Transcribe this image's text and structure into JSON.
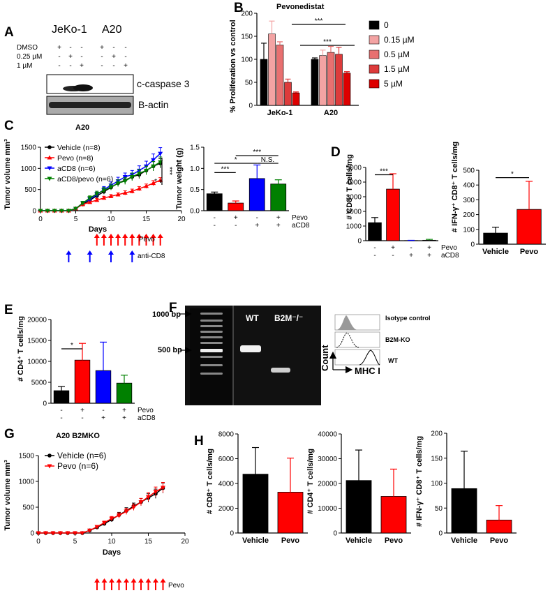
{
  "panel_labels": [
    "A",
    "B",
    "C",
    "D",
    "E",
    "F",
    "G",
    "H"
  ],
  "panel_a": {
    "cell_lines": [
      "JeKo-1",
      "A20"
    ],
    "treatments": [
      "DMSO",
      "0.25 µM",
      "1 µM"
    ],
    "marks": [
      [
        "+",
        "-",
        "-",
        "+",
        "-",
        "-"
      ],
      [
        "-",
        "+",
        "-",
        "-",
        "+",
        "-"
      ],
      [
        "-",
        "-",
        "+",
        "-",
        "-",
        "+"
      ]
    ],
    "blots": [
      "c-caspase 3",
      "B-actin"
    ]
  },
  "chart_data": [
    {
      "id": "B",
      "type": "bar",
      "title": "Pevonedistat",
      "categories": [
        "JeKo-1",
        "A20"
      ],
      "ylabel": "% Proliferation vs control",
      "ylim": [
        0,
        200
      ],
      "yticks": [
        0,
        50,
        100,
        150,
        200
      ],
      "series": [
        {
          "name": "0",
          "color": "#000000",
          "values": [
            100,
            100
          ],
          "err": [
            35,
            3
          ]
        },
        {
          "name": "0.15 µM",
          "color": "#f3a3a3",
          "values": [
            155,
            108
          ],
          "err": [
            28,
            12
          ]
        },
        {
          "name": "0.5 µM",
          "color": "#e87070",
          "values": [
            131,
            115
          ],
          "err": [
            7,
            13
          ]
        },
        {
          "name": "1.5 µM",
          "color": "#dd3b3b",
          "values": [
            50,
            111
          ],
          "err": [
            7,
            15
          ]
        },
        {
          "name": "5 µM",
          "color": "#dd0000",
          "values": [
            27,
            70
          ],
          "err": [
            2,
            3
          ]
        }
      ],
      "annotations": [
        "***",
        "***"
      ]
    },
    {
      "id": "C-left",
      "type": "line",
      "title": "A20",
      "xlabel": "Days",
      "ylabel": "Tumor volume mm³",
      "xlim": [
        0,
        20
      ],
      "ylim": [
        0,
        1500
      ],
      "xticks": [
        0,
        5,
        10,
        15,
        20
      ],
      "yticks": [
        0,
        500,
        1000,
        1500
      ],
      "x": [
        0,
        1,
        2,
        3,
        4,
        5,
        6,
        7,
        8,
        9,
        10,
        11,
        12,
        13,
        14,
        15,
        16,
        17
      ],
      "series": [
        {
          "name": "Vehicle (n=8)",
          "color": "#000000",
          "marker": "circle",
          "values": [
            0,
            0,
            0,
            0,
            0,
            50,
            150,
            250,
            350,
            450,
            550,
            650,
            720,
            800,
            850,
            950,
            1050,
            1120
          ],
          "err": [
            0,
            0,
            0,
            0,
            0,
            15,
            30,
            40,
            50,
            60,
            60,
            70,
            80,
            80,
            90,
            100,
            110,
            110
          ]
        },
        {
          "name": "Pevo (n=8)",
          "color": "#ff0000",
          "marker": "triangle-up",
          "values": [
            0,
            0,
            0,
            0,
            0,
            50,
            150,
            200,
            250,
            300,
            340,
            380,
            420,
            460,
            520,
            580,
            650,
            720
          ],
          "err": [
            0,
            0,
            0,
            0,
            0,
            15,
            30,
            30,
            40,
            40,
            40,
            40,
            50,
            50,
            50,
            50,
            60,
            60
          ]
        },
        {
          "name": "aCD8 (n=6)",
          "color": "#0000ff",
          "marker": "triangle-down",
          "values": [
            0,
            0,
            0,
            0,
            0,
            50,
            180,
            270,
            380,
            500,
            600,
            700,
            800,
            850,
            950,
            1050,
            1200,
            1350
          ],
          "err": [
            0,
            0,
            0,
            0,
            0,
            15,
            40,
            50,
            60,
            70,
            80,
            90,
            90,
            100,
            110,
            120,
            140,
            140
          ]
        },
        {
          "name": "aCD8/pevo (n=6)",
          "color": "#008000",
          "marker": "triangle-down",
          "values": [
            0,
            0,
            0,
            0,
            0,
            50,
            180,
            300,
            400,
            480,
            560,
            650,
            700,
            800,
            880,
            950,
            1050,
            1150
          ],
          "err": [
            0,
            0,
            0,
            0,
            0,
            15,
            40,
            50,
            60,
            70,
            70,
            80,
            80,
            90,
            100,
            100,
            110,
            120
          ]
        }
      ],
      "annotations": [
        "*",
        "***"
      ],
      "dosing": [
        {
          "label": "Pevo",
          "color": "#ff0000",
          "days": [
            8,
            9,
            10,
            11,
            12,
            13,
            14,
            15,
            16,
            17
          ]
        },
        {
          "label": "anti-CD8",
          "color": "#0000ff",
          "days": [
            4,
            7,
            10,
            13
          ]
        }
      ]
    },
    {
      "id": "C-right",
      "type": "bar",
      "ylabel": "Tumor weight (g)",
      "ylim": [
        0,
        1.5
      ],
      "yticks": [
        0.0,
        0.5,
        1.0,
        1.5
      ],
      "values": [
        0.4,
        0.18,
        0.76,
        0.63
      ],
      "err": [
        0.04,
        0.05,
        0.32,
        0.1
      ],
      "colors": [
        "#000000",
        "#ff0000",
        "#0000ff",
        "#008000"
      ],
      "rows": [
        {
          "label": "Pevo",
          "marks": [
            "-",
            "+",
            "-",
            "+"
          ]
        },
        {
          "label": "aCD8",
          "marks": [
            "-",
            "-",
            "+",
            "+"
          ]
        }
      ],
      "annotations": [
        "***",
        "*",
        "***",
        "N.S."
      ]
    },
    {
      "id": "D-left",
      "type": "bar",
      "ylabel": "# CD8⁺ T cells/mg",
      "ylim": [
        0,
        5000
      ],
      "yticks": [
        0,
        1000,
        2000,
        3000,
        4000,
        5000
      ],
      "values": [
        1230,
        3520,
        10,
        30
      ],
      "err": [
        350,
        1050,
        15,
        60
      ],
      "colors": [
        "#000000",
        "#ff0000",
        "#0000ff",
        "#008000"
      ],
      "rows": [
        {
          "label": "Pevo",
          "marks": [
            "-",
            "+",
            "-",
            "+"
          ]
        },
        {
          "label": "aCD8",
          "marks": [
            "-",
            "-",
            "+",
            "+"
          ]
        }
      ],
      "annotations": [
        "***"
      ]
    },
    {
      "id": "D-right",
      "type": "bar",
      "ylabel": "# IFN-γ⁺ CD8⁺ T cells/mg",
      "categories": [
        "Vehicle",
        "Pevo"
      ],
      "ylim": [
        0,
        500
      ],
      "yticks": [
        0,
        100,
        200,
        300,
        400,
        500
      ],
      "values": [
        75,
        235
      ],
      "err": [
        40,
        190
      ],
      "colors": [
        "#000000",
        "#ff0000"
      ],
      "annotations": [
        "*"
      ]
    },
    {
      "id": "E",
      "type": "bar",
      "ylabel": "# CD4⁺ T cells/mg",
      "ylim": [
        0,
        20000
      ],
      "yticks": [
        0,
        5000,
        10000,
        15000,
        20000
      ],
      "values": [
        3000,
        10300,
        7800,
        4800
      ],
      "err": [
        1000,
        4000,
        6800,
        1900
      ],
      "colors": [
        "#000000",
        "#ff0000",
        "#0000ff",
        "#008000"
      ],
      "rows": [
        {
          "label": "Pevo",
          "marks": [
            "-",
            "+",
            "-",
            "+"
          ]
        },
        {
          "label": "aCD8",
          "marks": [
            "-",
            "-",
            "+",
            "+"
          ]
        }
      ],
      "annotations": [
        "*"
      ]
    },
    {
      "id": "G",
      "type": "line",
      "title": "A20 B2MKO",
      "xlabel": "Days",
      "ylabel": "Tumor volume mm³",
      "xlim": [
        0,
        20
      ],
      "ylim": [
        0,
        1500
      ],
      "xticks": [
        0,
        5,
        10,
        15,
        20
      ],
      "yticks": [
        0,
        500,
        1000,
        1500
      ],
      "x": [
        0,
        1,
        2,
        3,
        4,
        5,
        6,
        7,
        8,
        9,
        10,
        11,
        12,
        13,
        14,
        15,
        16,
        17
      ],
      "series": [
        {
          "name": "Vehicle (n=6)",
          "color": "#000000",
          "marker": "circle",
          "values": [
            0,
            0,
            0,
            0,
            0,
            0,
            0,
            50,
            110,
            180,
            260,
            350,
            430,
            520,
            600,
            680,
            760,
            870
          ],
          "err": [
            0,
            0,
            0,
            0,
            0,
            0,
            0,
            20,
            25,
            30,
            40,
            50,
            60,
            60,
            70,
            80,
            90,
            100
          ]
        },
        {
          "name": "Pevo (n=6)",
          "color": "#ff0000",
          "marker": "triangle-down",
          "values": [
            0,
            0,
            0,
            0,
            0,
            0,
            0,
            50,
            120,
            200,
            280,
            340,
            420,
            500,
            600,
            700,
            800,
            880
          ],
          "err": [
            0,
            0,
            0,
            0,
            0,
            0,
            0,
            20,
            25,
            30,
            40,
            50,
            60,
            60,
            70,
            80,
            90,
            100
          ]
        }
      ],
      "dosing": [
        {
          "label": "Pevo",
          "color": "#ff0000",
          "days": [
            8,
            9,
            10,
            11,
            12,
            13,
            14,
            15,
            16,
            17
          ]
        }
      ]
    },
    {
      "id": "H1",
      "type": "bar",
      "ylabel": "# CD8⁺ T cells/mg",
      "categories": [
        "Vehicle",
        "Pevo"
      ],
      "ylim": [
        0,
        8000
      ],
      "yticks": [
        0,
        2000,
        4000,
        6000,
        8000
      ],
      "values": [
        4750,
        3300
      ],
      "err": [
        2150,
        2750
      ],
      "colors": [
        "#000000",
        "#ff0000"
      ]
    },
    {
      "id": "H2",
      "type": "bar",
      "ylabel": "# CD4⁺ T cells/mg",
      "categories": [
        "Vehicle",
        "Pevo"
      ],
      "ylim": [
        0,
        40000
      ],
      "yticks": [
        0,
        10000,
        20000,
        30000,
        40000
      ],
      "values": [
        21200,
        14800
      ],
      "err": [
        12300,
        11000
      ],
      "colors": [
        "#000000",
        "#ff0000"
      ]
    },
    {
      "id": "H3",
      "type": "bar",
      "ylabel": "# IFN-γ⁺ CD8⁺ T cells/mg",
      "categories": [
        "Vehicle",
        "Pevo"
      ],
      "ylim": [
        0,
        200
      ],
      "yticks": [
        0,
        50,
        100,
        150,
        200
      ],
      "values": [
        89,
        26
      ],
      "err": [
        75,
        29
      ],
      "colors": [
        "#000000",
        "#ff0000"
      ]
    }
  ],
  "panel_f": {
    "ladder": [
      "1000 bp",
      "500 bp"
    ],
    "lanes": [
      "WT",
      "B2M⁻/⁻"
    ],
    "flow_labels": [
      "Isotype control",
      "B2M-KO",
      "WT"
    ],
    "axes": [
      "Count",
      "MHC I"
    ]
  }
}
